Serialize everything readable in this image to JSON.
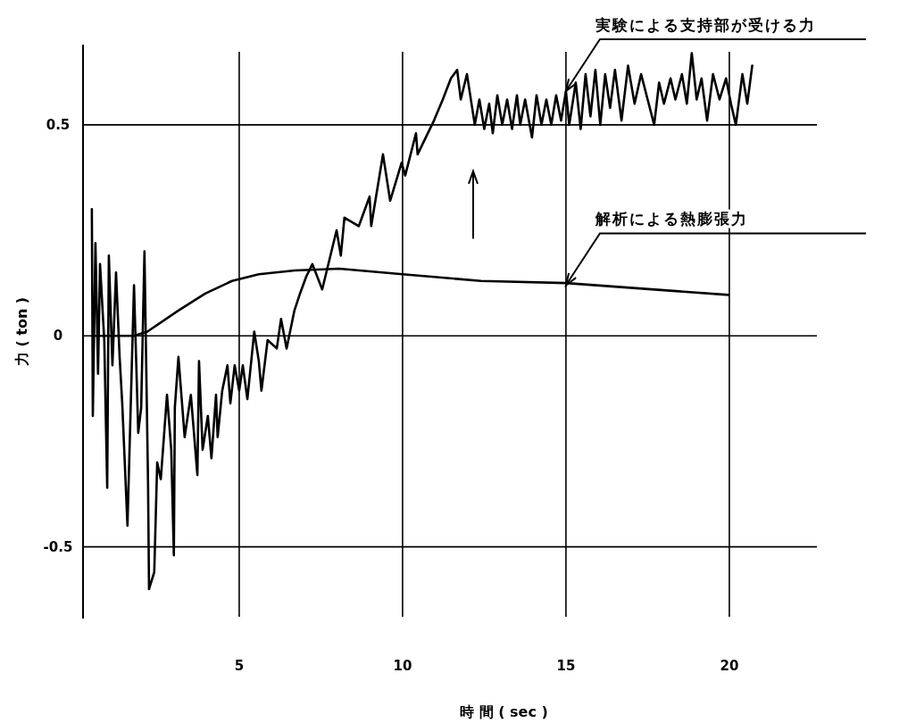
{
  "chart_data": {
    "type": "line",
    "xlabel": "時 間 ( sec )",
    "ylabel": "力 ( ton )",
    "xlim": [
      0.22,
      22.68
    ],
    "ylim": [
      -0.67,
      0.69
    ],
    "xticks": [
      5,
      10,
      15,
      20
    ],
    "yticks": [
      {
        "value": 0.5,
        "label": "0.5"
      },
      0,
      {
        "value": -0.5,
        "label": "-0.5"
      }
    ],
    "grid": true,
    "marker": "none",
    "line_style": "solid",
    "series": [
      {
        "color": "#000000",
        "x": [
          0.49,
          0.52,
          0.6,
          0.68,
          0.74,
          0.87,
          0.96,
          1.01,
          1.12,
          1.23,
          1.34,
          1.42,
          1.58,
          1.78,
          1.91,
          2.0,
          2.1,
          2.21,
          2.24,
          2.4,
          2.49,
          2.6,
          2.79,
          2.92,
          3.0,
          3.03,
          3.14,
          3.33,
          3.52,
          3.72,
          3.77,
          3.88,
          4.04,
          4.15,
          4.29,
          4.34,
          4.48,
          4.64,
          4.73,
          4.86,
          5.0,
          5.11,
          5.25,
          5.46,
          5.6,
          5.68,
          5.87,
          6.15,
          6.28,
          6.45,
          6.69,
          6.86,
          7.05,
          7.24,
          7.54,
          7.98,
          8.11,
          8.22,
          8.66,
          8.99,
          9.04,
          9.4,
          9.62,
          9.97,
          10.08,
          10.41,
          10.46,
          10.96,
          11.23,
          11.48,
          11.67,
          11.78,
          11.97,
          12.21,
          12.35,
          12.5,
          12.65,
          12.76,
          12.9,
          13.05,
          13.2,
          13.35,
          13.5,
          13.6,
          13.75,
          13.96,
          14.1,
          14.25,
          14.4,
          14.55,
          14.7,
          14.85,
          15.0,
          15.1,
          15.3,
          15.45,
          15.6,
          15.75,
          15.9,
          16.05,
          16.2,
          16.35,
          16.5,
          16.7,
          16.9,
          17.1,
          17.3,
          17.5,
          17.7,
          17.85,
          18.0,
          18.2,
          18.35,
          18.55,
          18.7,
          18.85,
          19.0,
          19.15,
          19.32,
          19.5,
          19.7,
          19.9,
          20.05,
          20.2,
          20.4,
          20.55,
          20.7
        ],
        "values": [
          0.3,
          -0.19,
          0.22,
          -0.09,
          0.17,
          -0.01,
          -0.36,
          0.19,
          -0.07,
          0.15,
          -0.05,
          -0.16,
          -0.45,
          0.12,
          -0.23,
          -0.17,
          0.2,
          -0.35,
          -0.6,
          -0.56,
          -0.3,
          -0.34,
          -0.14,
          -0.27,
          -0.52,
          -0.17,
          -0.05,
          -0.24,
          -0.14,
          -0.33,
          -0.06,
          -0.27,
          -0.19,
          -0.29,
          -0.14,
          -0.24,
          -0.13,
          -0.07,
          -0.16,
          -0.07,
          -0.13,
          -0.07,
          -0.15,
          0.01,
          -0.06,
          -0.13,
          -0.01,
          -0.03,
          0.04,
          -0.03,
          0.06,
          0.1,
          0.14,
          0.17,
          0.11,
          0.25,
          0.19,
          0.28,
          0.26,
          0.33,
          0.26,
          0.43,
          0.32,
          0.41,
          0.38,
          0.48,
          0.43,
          0.51,
          0.56,
          0.61,
          0.63,
          0.56,
          0.62,
          0.5,
          0.56,
          0.49,
          0.55,
          0.48,
          0.57,
          0.5,
          0.56,
          0.49,
          0.57,
          0.5,
          0.56,
          0.47,
          0.57,
          0.5,
          0.56,
          0.5,
          0.57,
          0.51,
          0.58,
          0.5,
          0.6,
          0.49,
          0.62,
          0.52,
          0.63,
          0.5,
          0.62,
          0.54,
          0.63,
          0.51,
          0.64,
          0.55,
          0.62,
          0.56,
          0.5,
          0.6,
          0.55,
          0.61,
          0.56,
          0.62,
          0.55,
          0.67,
          0.56,
          0.61,
          0.51,
          0.62,
          0.56,
          0.61,
          0.55,
          0.5,
          0.62,
          0.55,
          0.64
        ]
      },
      {
        "color": "#000000",
        "x": [
          0.5,
          1.78,
          2.19,
          3.14,
          3.96,
          4.78,
          5.6,
          6.7,
          8.06,
          10.0,
          12.4,
          15.0,
          19.97
        ],
        "values": [
          0,
          0,
          0.01,
          0.06,
          0.1,
          0.13,
          0.146,
          0.155,
          0.159,
          0.146,
          0.13,
          0.125,
          0.097
        ]
      }
    ],
    "annotations": [
      {
        "text": "実験による支持部が受ける力",
        "x": 15,
        "y": 0.58
      },
      {
        "text": "解析による熱膨張力",
        "x": 15,
        "y": 0.12
      }
    ]
  }
}
